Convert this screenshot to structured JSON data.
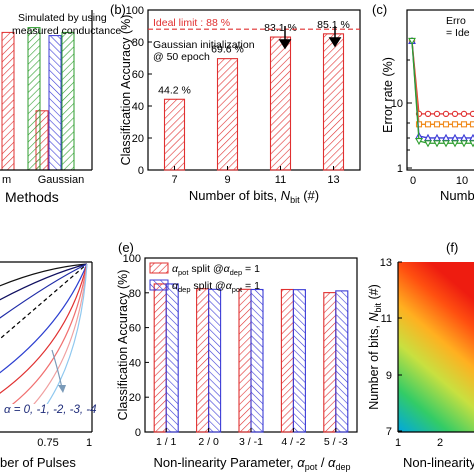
{
  "chart_data": [
    {
      "panel": "a",
      "type": "bar",
      "categories": [
        "m",
        "Gaussian"
      ],
      "xlabel": "Methods",
      "annotation": [
        "Simulated by using",
        "measured conductance"
      ],
      "series": [
        {
          "color": "#e03030",
          "values": [
            86,
            37
          ]
        },
        {
          "color": "#3b3bd6",
          "values": [
            null,
            84
          ]
        },
        {
          "color": "#2e9e2e",
          "values": [
            89,
            86
          ]
        }
      ],
      "ylim": [
        0,
        100
      ]
    },
    {
      "panel": "b",
      "label": "(b)",
      "type": "bar",
      "categories": [
        "7",
        "9",
        "11",
        "13"
      ],
      "values": [
        44.2,
        69.6,
        83.1,
        85.1
      ],
      "data_labels": [
        "44.2 %",
        "69.6 %",
        "83.1 %",
        "85.1 %"
      ],
      "ylabel": "Classification Accuracy (%)",
      "xlabel": "Number of bits, ",
      "xlabel_sym": "N",
      "xlabel_sub": "bit",
      "xlabel_unit": " (#)",
      "ylim": [
        0,
        100
      ],
      "yticks": [
        0,
        20,
        40,
        60,
        80,
        100
      ],
      "ideal_limit": 88,
      "ideal_label": "Ideal limit : 88 %",
      "annotation": [
        "Gaussian initialization",
        "@ 50 epoch"
      ],
      "color": "#e03030"
    },
    {
      "panel": "c",
      "label": "(c)",
      "type": "line",
      "ylabel": "Error rate (%)",
      "xlabel": "Numb",
      "yscale": "log",
      "yticks": [
        "10",
        "1"
      ],
      "xticks": [
        "0",
        "10"
      ],
      "legend": [
        "Erro",
        "= Ide"
      ],
      "series": [
        {
          "color": "#e03030",
          "marker": "circle",
          "values": [
            90,
            6.8,
            6.8,
            6.8,
            6.8,
            6.8,
            6.8,
            6.8
          ]
        },
        {
          "color": "#f08a1c",
          "marker": "square",
          "values": [
            90,
            4.7,
            4.7,
            4.7,
            4.7,
            4.7,
            4.7,
            4.7
          ]
        },
        {
          "color": "#3b3bd6",
          "marker": "triangle",
          "values": [
            90,
            3.1,
            2.9,
            2.9,
            2.9,
            2.9,
            2.9,
            2.9
          ]
        },
        {
          "color": "#2e9e2e",
          "marker": "triangle-down",
          "values": [
            90,
            2.6,
            2.4,
            2.4,
            2.4,
            2.4,
            2.4,
            2.4
          ]
        }
      ]
    },
    {
      "panel": "d",
      "type": "line",
      "xlabel": "ber of Pulses",
      "xticks": [
        "0.75",
        "1"
      ],
      "annotation": "α = 0, -1, -2, -3, -4"
    },
    {
      "panel": "e",
      "label": "(e)",
      "type": "bar",
      "categories": [
        "1 / 1",
        "2 / 0",
        "3 / -1",
        "4 / -2",
        "5 / -3"
      ],
      "ylabel": "Classification Accuracy (%)",
      "xlabel": "Non-linearity Parameter, ",
      "xlabel_num": "α",
      "xlabel_num_sub": "pot",
      "xlabel_den": "α",
      "xlabel_den_sub": "dep",
      "ylim": [
        0,
        100
      ],
      "yticks": [
        0,
        20,
        40,
        60,
        80,
        100
      ],
      "legend": [
        {
          "sym": "α",
          "sub": "pot",
          "text": " split @",
          "sym2": "α",
          "sub2": "dep",
          "tail": " = 1"
        },
        {
          "sym": "α",
          "sub": "dep",
          "text": " split @",
          "sym2": "α",
          "sub2": "pot",
          "tail": " = 1"
        }
      ],
      "series": [
        {
          "color": "#e03030",
          "values": [
            85.1,
            82.3,
            82.0,
            81.9,
            80.1
          ]
        },
        {
          "color": "#3b3bd6",
          "values": [
            85.1,
            82.0,
            81.9,
            81.8,
            81.1
          ]
        }
      ]
    },
    {
      "panel": "f",
      "label": "(f)",
      "type": "heatmap",
      "ylabel": "Number of bits, ",
      "ylabel_sym": "N",
      "ylabel_sub": "bit",
      "ylabel_unit": " (#)",
      "xlabel": "Non-linearity",
      "yticks": [
        "7",
        "9",
        "11",
        "13"
      ],
      "xticks": [
        "1",
        "2"
      ]
    }
  ]
}
